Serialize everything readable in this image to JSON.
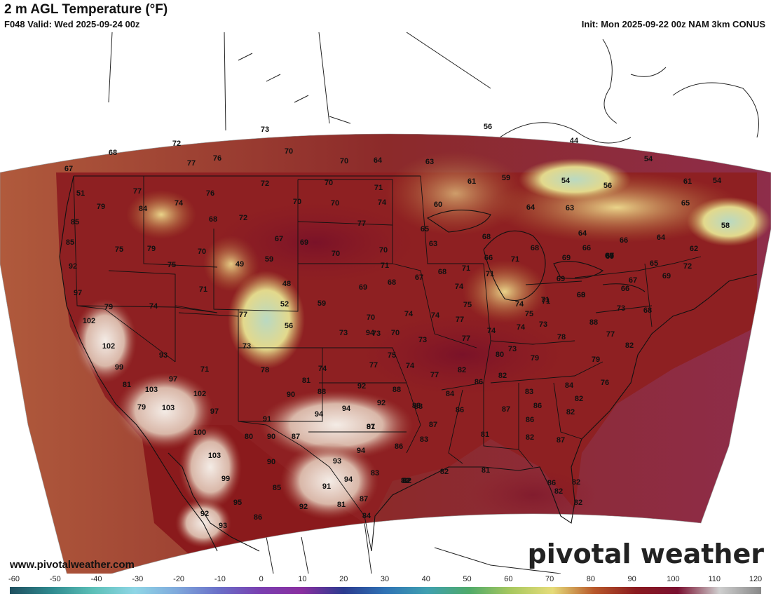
{
  "header": {
    "title": "2 m AGL Temperature (°F)",
    "valid": "F048 Valid: Wed 2025-09-24 00z",
    "init": "Init: Mon 2025-09-22 00z NAM 3km CONUS"
  },
  "footer": {
    "url": "www.pivotalweather.com",
    "brand": "pivotal weather"
  },
  "colorbar": {
    "ticks": [
      "-60",
      "-50",
      "-40",
      "-30",
      "-20",
      "-10",
      "0",
      "10",
      "20",
      "30",
      "40",
      "50",
      "60",
      "70",
      "80",
      "90",
      "100",
      "110",
      "120"
    ],
    "stops": [
      "#1f4f5f",
      "#2f8a8f",
      "#5cc0b8",
      "#8fd6e6",
      "#7fa9dc",
      "#6a6fc8",
      "#7a3fb0",
      "#8a2fa0",
      "#2b3b8f",
      "#2f73b5",
      "#3fa0b0",
      "#4faa6a",
      "#a8c85f",
      "#e6dc7a",
      "#b8582a",
      "#8a1a1f",
      "#7a1030",
      "#cfcfcf",
      "#888888"
    ]
  },
  "map": {
    "temperature_labels": [
      {
        "v": "73"
      },
      {
        "v": "56"
      },
      {
        "v": "72"
      },
      {
        "v": "68"
      },
      {
        "v": "77"
      },
      {
        "v": "76"
      },
      {
        "v": "70"
      },
      {
        "v": "70"
      },
      {
        "v": "64"
      },
      {
        "v": "63"
      },
      {
        "v": "44"
      },
      {
        "v": "54"
      },
      {
        "v": "67"
      },
      {
        "v": "51"
      },
      {
        "v": "77"
      },
      {
        "v": "76"
      },
      {
        "v": "72"
      },
      {
        "v": "70"
      },
      {
        "v": "71"
      },
      {
        "v": "61"
      },
      {
        "v": "59"
      },
      {
        "v": "54"
      },
      {
        "v": "56"
      },
      {
        "v": "61"
      },
      {
        "v": "54"
      },
      {
        "v": "79"
      },
      {
        "v": "84"
      },
      {
        "v": "74"
      },
      {
        "v": "70"
      },
      {
        "v": "70"
      },
      {
        "v": "74"
      },
      {
        "v": "60"
      },
      {
        "v": "64"
      },
      {
        "v": "63"
      },
      {
        "v": "65"
      },
      {
        "v": "85"
      },
      {
        "v": "68"
      },
      {
        "v": "72"
      },
      {
        "v": "77"
      },
      {
        "v": "68"
      },
      {
        "v": "68"
      },
      {
        "v": "58"
      },
      {
        "v": "85"
      },
      {
        "v": "75"
      },
      {
        "v": "79"
      },
      {
        "v": "70"
      },
      {
        "v": "67"
      },
      {
        "v": "69"
      },
      {
        "v": "65"
      },
      {
        "v": "63"
      },
      {
        "v": "64"
      },
      {
        "v": "64"
      },
      {
        "v": "66"
      },
      {
        "v": "66"
      },
      {
        "v": "92"
      },
      {
        "v": "75"
      },
      {
        "v": "49"
      },
      {
        "v": "59"
      },
      {
        "v": "70"
      },
      {
        "v": "70"
      },
      {
        "v": "71"
      },
      {
        "v": "66"
      },
      {
        "v": "71"
      },
      {
        "v": "68"
      },
      {
        "v": "71"
      },
      {
        "v": "69"
      },
      {
        "v": "67"
      },
      {
        "v": "65"
      },
      {
        "v": "62"
      },
      {
        "v": "72"
      },
      {
        "v": "97"
      },
      {
        "v": "71"
      },
      {
        "v": "48"
      },
      {
        "v": "69"
      },
      {
        "v": "68"
      },
      {
        "v": "67"
      },
      {
        "v": "68"
      },
      {
        "v": "71"
      },
      {
        "v": "74"
      },
      {
        "v": "69"
      },
      {
        "v": "66"
      },
      {
        "v": "69"
      },
      {
        "v": "69"
      },
      {
        "v": "67"
      },
      {
        "v": "71"
      },
      {
        "v": "69"
      },
      {
        "v": "79"
      },
      {
        "v": "74"
      },
      {
        "v": "52"
      },
      {
        "v": "59"
      },
      {
        "v": "75"
      },
      {
        "v": "74"
      },
      {
        "v": "71"
      },
      {
        "v": "68"
      },
      {
        "v": "73"
      },
      {
        "v": "68"
      },
      {
        "v": "102"
      },
      {
        "v": "77"
      },
      {
        "v": "56"
      },
      {
        "v": "70"
      },
      {
        "v": "74"
      },
      {
        "v": "74"
      },
      {
        "v": "77"
      },
      {
        "v": "75"
      },
      {
        "v": "74"
      },
      {
        "v": "74"
      },
      {
        "v": "73"
      },
      {
        "v": "70"
      },
      {
        "v": "94"
      },
      {
        "v": "88"
      },
      {
        "v": "73"
      },
      {
        "v": "73"
      },
      {
        "v": "73"
      },
      {
        "v": "77"
      },
      {
        "v": "78"
      },
      {
        "v": "77"
      },
      {
        "v": "102"
      },
      {
        "v": "93"
      },
      {
        "v": "73"
      },
      {
        "v": "75"
      },
      {
        "v": "80"
      },
      {
        "v": "79"
      },
      {
        "v": "82"
      },
      {
        "v": "79"
      },
      {
        "v": "99"
      },
      {
        "v": "71"
      },
      {
        "v": "78"
      },
      {
        "v": "74"
      },
      {
        "v": "77"
      },
      {
        "v": "74"
      },
      {
        "v": "82"
      },
      {
        "v": "77"
      },
      {
        "v": "73"
      },
      {
        "v": "81"
      },
      {
        "v": "103"
      },
      {
        "v": "97"
      },
      {
        "v": "81"
      },
      {
        "v": "92"
      },
      {
        "v": "88"
      },
      {
        "v": "86"
      },
      {
        "v": "82"
      },
      {
        "v": "84"
      },
      {
        "v": "76"
      },
      {
        "v": "102"
      },
      {
        "v": "90"
      },
      {
        "v": "88"
      },
      {
        "v": "92"
      },
      {
        "v": "88"
      },
      {
        "v": "84"
      },
      {
        "v": "83"
      },
      {
        "v": "82"
      },
      {
        "v": "79"
      },
      {
        "v": "103"
      },
      {
        "v": "97"
      },
      {
        "v": "94"
      },
      {
        "v": "88"
      },
      {
        "v": "86"
      },
      {
        "v": "87"
      },
      {
        "v": "86"
      },
      {
        "v": "82"
      },
      {
        "v": "90"
      },
      {
        "v": "91"
      },
      {
        "v": "94"
      },
      {
        "v": "87"
      },
      {
        "v": "87"
      },
      {
        "v": "86"
      },
      {
        "v": "100"
      },
      {
        "v": "80"
      },
      {
        "v": "87"
      },
      {
        "v": "91"
      },
      {
        "v": "83"
      },
      {
        "v": "86"
      },
      {
        "v": "81"
      },
      {
        "v": "82"
      },
      {
        "v": "87"
      },
      {
        "v": "103"
      },
      {
        "v": "90"
      },
      {
        "v": "93"
      },
      {
        "v": "94"
      },
      {
        "v": "82"
      },
      {
        "v": "99"
      },
      {
        "v": "85"
      },
      {
        "v": "91"
      },
      {
        "v": "94"
      },
      {
        "v": "83"
      },
      {
        "v": "82"
      },
      {
        "v": "82"
      },
      {
        "v": "81"
      },
      {
        "v": "86"
      },
      {
        "v": "82"
      },
      {
        "v": "95"
      },
      {
        "v": "92"
      },
      {
        "v": "81"
      },
      {
        "v": "87"
      },
      {
        "v": "82"
      },
      {
        "v": "92"
      },
      {
        "v": "93"
      },
      {
        "v": "86"
      },
      {
        "v": "84"
      },
      {
        "v": "82"
      },
      {
        "v": "82"
      }
    ]
  }
}
